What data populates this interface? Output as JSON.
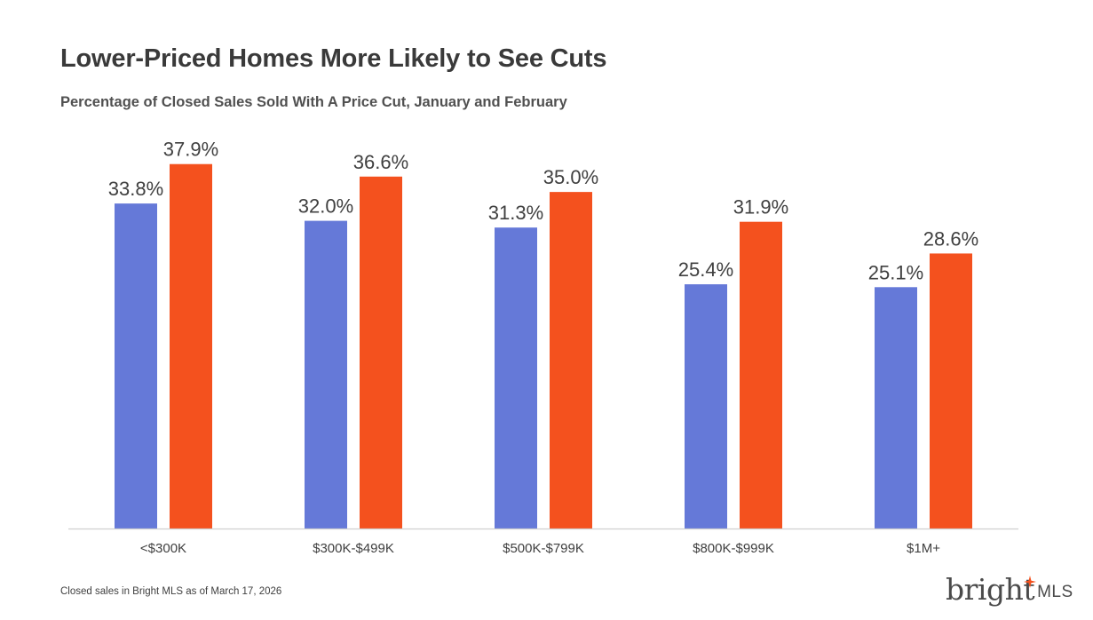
{
  "header": {
    "title": "Lower-Priced Homes More Likely to See Cuts",
    "subtitle": "Percentage of Closed Sales Sold With A Price Cut, January and February"
  },
  "footer": {
    "note": "Closed sales in Bright MLS as of March 17, 2026",
    "logo_main": "bright",
    "logo_sub": "MLS"
  },
  "colors": {
    "series1": "#6579D8",
    "series2": "#F4511E",
    "logo_accent": "#F4511E"
  },
  "chart_data": {
    "type": "bar",
    "title": "Lower-Priced Homes More Likely to See Cuts",
    "subtitle": "Percentage of Closed Sales Sold With A Price Cut, January and February",
    "categories": [
      "<$300K",
      "$300K-$499K",
      "$500K-$799K",
      "$800K-$999K",
      "$1M+"
    ],
    "series": [
      {
        "values": [
          33.8,
          32.0,
          31.3,
          25.4,
          25.1
        ],
        "labels": [
          "33.8%",
          "32.0%",
          "31.3%",
          "25.4%",
          "25.1%"
        ],
        "color": "#6579D8"
      },
      {
        "values": [
          37.9,
          36.6,
          35.0,
          31.9,
          28.6
        ],
        "labels": [
          "37.9%",
          "36.6%",
          "35.0%",
          "31.9%",
          "28.6%"
        ],
        "color": "#F4511E"
      }
    ],
    "ylim": [
      0,
      40
    ],
    "grid": false,
    "legend": "none"
  }
}
